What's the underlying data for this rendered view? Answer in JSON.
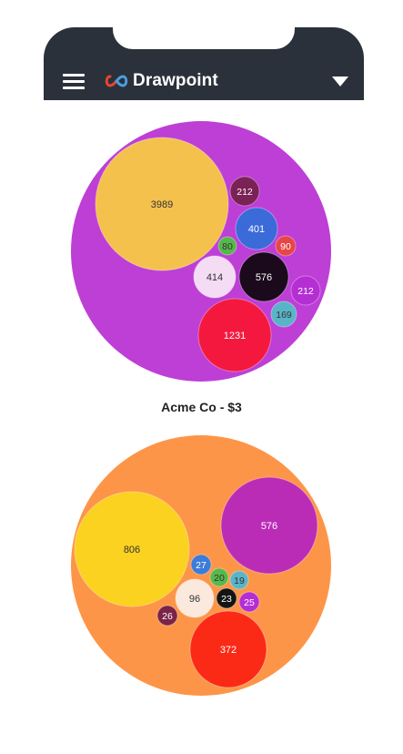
{
  "header": {
    "app_name": "Drawpoint",
    "menu_icon": "hamburger-menu-icon",
    "logo_icon": "infinity-logo-icon",
    "dropdown_icon": "triangle-down-icon",
    "background_color": "#2a313a"
  },
  "chart_data": [
    {
      "type": "bubble",
      "title": "",
      "container_color": "#bd3fd6",
      "bubbles": [
        {
          "value": 3989,
          "color": "#f5c14d"
        },
        {
          "value": 1231,
          "color": "#f5183e"
        },
        {
          "value": 576,
          "color": "#1a0a1c"
        },
        {
          "value": 414,
          "color": "#f5dcf5"
        },
        {
          "value": 401,
          "color": "#3a6bd9"
        },
        {
          "value": 212,
          "color": "#7a2256"
        },
        {
          "value": 212,
          "color": "#b52ed4"
        },
        {
          "value": 169,
          "color": "#5ab4c8"
        },
        {
          "value": 90,
          "color": "#e84646"
        },
        {
          "value": 80,
          "color": "#55b84a"
        }
      ]
    },
    {
      "type": "bubble",
      "title": "",
      "container_color": "#fd9548",
      "bubbles": [
        {
          "value": 806,
          "color": "#fbd21f"
        },
        {
          "value": 576,
          "color": "#bb2cb6"
        },
        {
          "value": 372,
          "color": "#fb2a16"
        },
        {
          "value": 96,
          "color": "#fbe9de"
        },
        {
          "value": 27,
          "color": "#3c7bd8"
        },
        {
          "value": 26,
          "color": "#7b2447"
        },
        {
          "value": 25,
          "color": "#b52ed4"
        },
        {
          "value": 23,
          "color": "#141414"
        },
        {
          "value": 20,
          "color": "#56b94b"
        },
        {
          "value": 19,
          "color": "#5ab4c8"
        }
      ]
    }
  ],
  "captions": {
    "first_chart": "Acme Co - $3"
  }
}
